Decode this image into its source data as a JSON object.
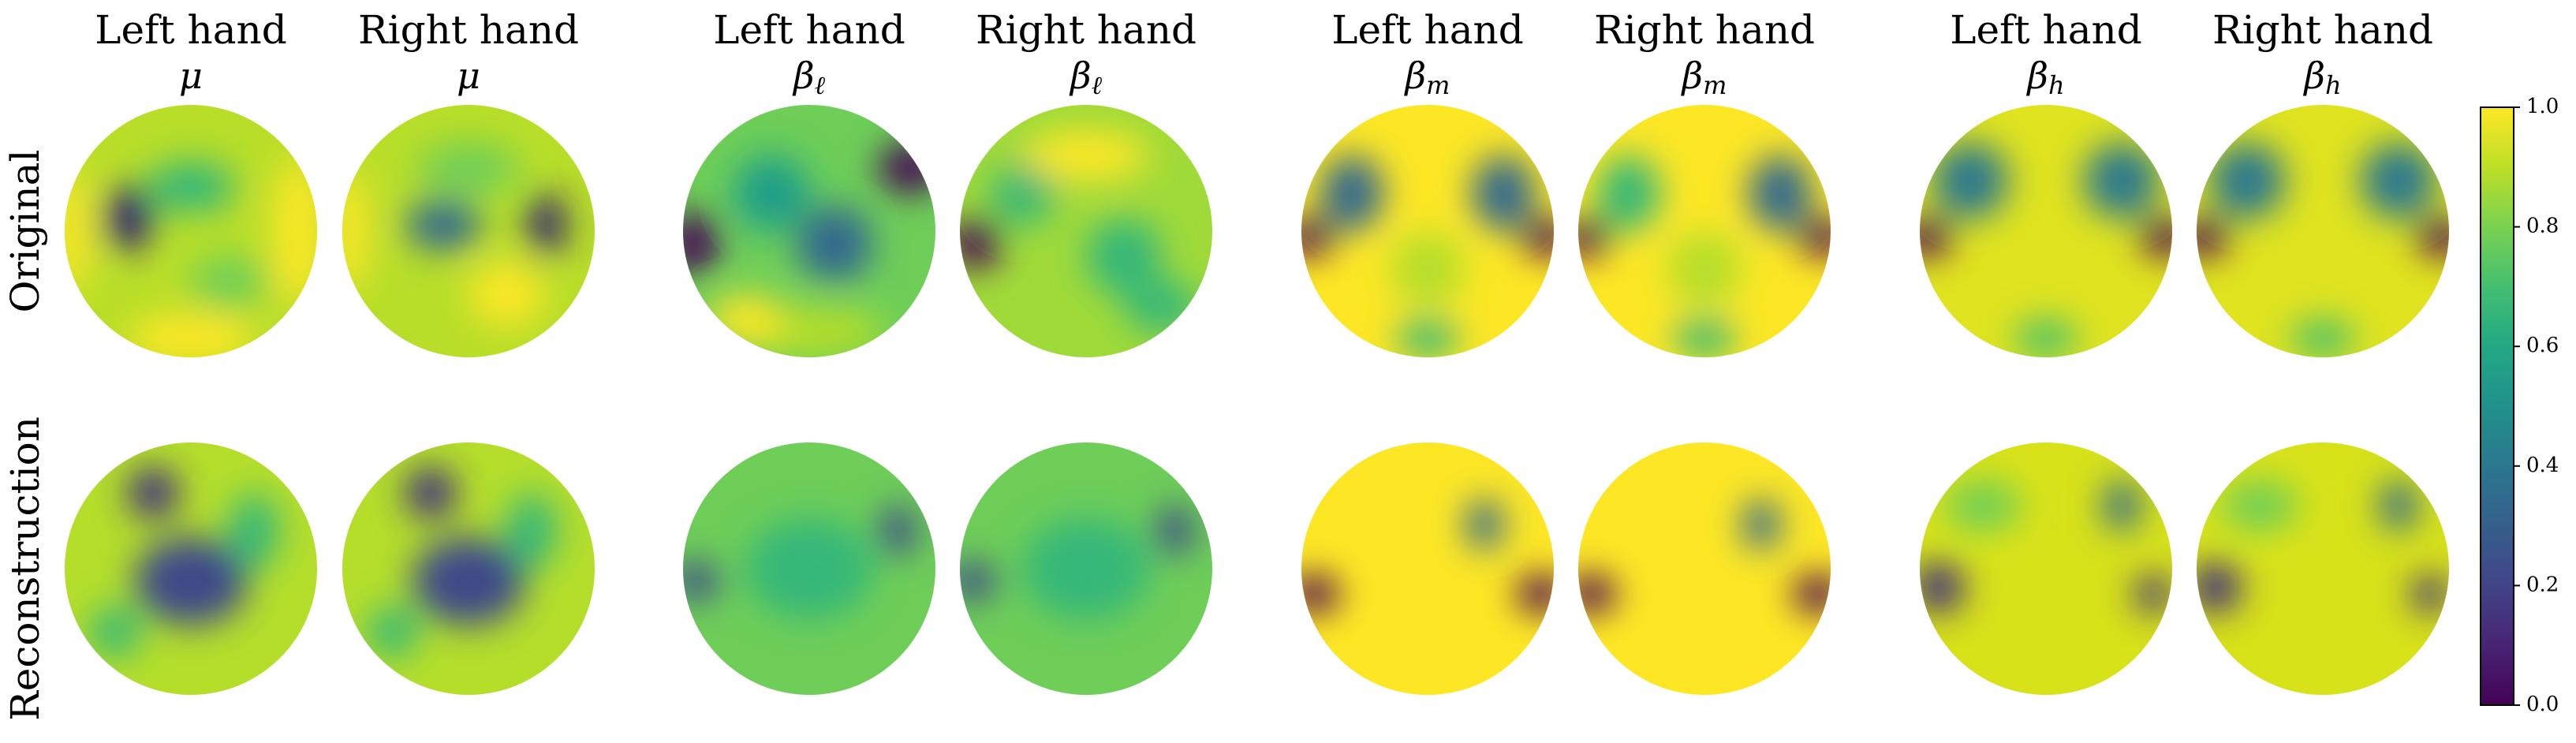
{
  "chart_data": {
    "type": "topomap",
    "row_labels": [
      "Original",
      "Reconstruction"
    ],
    "panels": [
      {
        "title": "Left hand",
        "symbol": "μ"
      },
      {
        "title": "Right hand",
        "symbol": "μ"
      },
      {
        "title": "Left hand",
        "symbol": "β",
        "subscript": "ℓ"
      },
      {
        "title": "Right hand",
        "symbol": "β",
        "subscript": "ℓ"
      },
      {
        "title": "Left hand",
        "symbol": "β",
        "subscript": "m"
      },
      {
        "title": "Right hand",
        "symbol": "β",
        "subscript": "m"
      },
      {
        "title": "Left hand",
        "symbol": "β",
        "subscript": "h"
      },
      {
        "title": "Right hand",
        "symbol": "β",
        "subscript": "h"
      }
    ],
    "colorbar": {
      "lim": [
        0,
        1
      ],
      "ticks": [
        {
          "value": 0,
          "label": "0.0"
        },
        {
          "value": 0.2,
          "label": "0.2"
        },
        {
          "value": 0.4,
          "label": "0.4"
        },
        {
          "value": 0.6,
          "label": "0.6"
        },
        {
          "value": 0.8,
          "label": "0.8"
        },
        {
          "value": 1,
          "label": "1.0"
        }
      ]
    }
  }
}
